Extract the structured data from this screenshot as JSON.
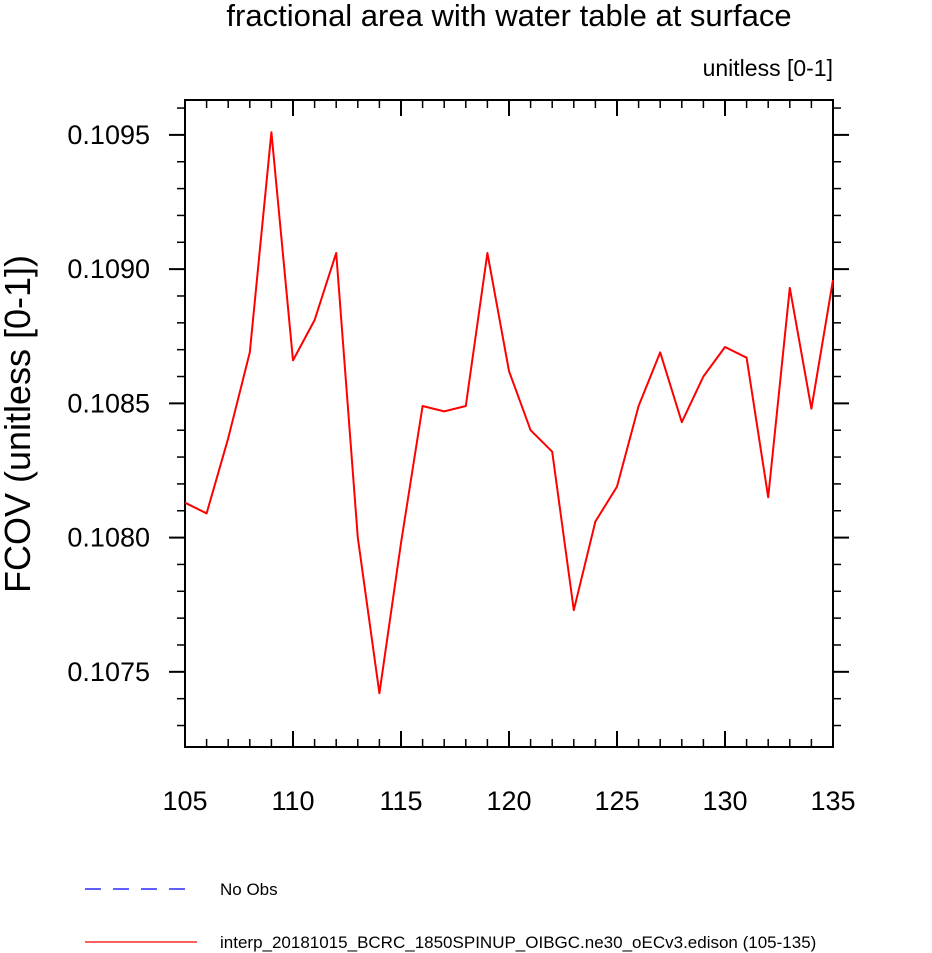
{
  "chart_data": {
    "type": "line",
    "title": "fractional area with water table at surface",
    "units_label": "unitless [0-1]",
    "ylabel": "FCOV  (unitless [0-1])",
    "xlabel": "",
    "xlim": [
      105,
      135
    ],
    "ylim": [
      0.10722,
      0.10963
    ],
    "x_ticks": [
      105,
      110,
      115,
      120,
      125,
      130,
      135
    ],
    "x_tick_labels": [
      "105",
      "110",
      "115",
      "120",
      "125",
      "130",
      "135"
    ],
    "y_ticks": [
      0.1075,
      0.108,
      0.1085,
      0.109,
      0.1095
    ],
    "y_tick_labels": [
      "0.1075",
      "0.1080",
      "0.1085",
      "0.1090",
      "0.1095"
    ],
    "series": [
      {
        "name": "interp_20181015_BCRC_1850SPINUP_OIBGC.ne30_oECv3.edison (105-135)",
        "color": "#ff0000",
        "dash": "solid",
        "x": [
          105,
          106,
          107,
          108,
          109,
          110,
          111,
          112,
          113,
          114,
          115,
          116,
          117,
          118,
          119,
          120,
          121,
          122,
          123,
          124,
          125,
          126,
          127,
          128,
          129,
          130,
          131,
          132,
          133,
          134,
          135
        ],
        "values": [
          0.10813,
          0.10809,
          0.10837,
          0.10869,
          0.10951,
          0.10866,
          0.10881,
          0.10906,
          0.108,
          0.10742,
          0.10798,
          0.10849,
          0.10847,
          0.10849,
          0.10906,
          0.10862,
          0.1084,
          0.10832,
          0.10773,
          0.10806,
          0.10819,
          0.10849,
          0.10869,
          0.10843,
          0.1086,
          0.10871,
          0.10867,
          0.10815,
          0.10893,
          0.10848,
          0.10896
        ]
      }
    ],
    "legend": [
      {
        "label": "No Obs",
        "color": "#0000ff",
        "dash": "dashed"
      },
      {
        "label": "interp_20181015_BCRC_1850SPINUP_OIBGC.ne30_oECv3.edison (105-135)",
        "color": "#ff0000",
        "dash": "solid"
      }
    ],
    "legend_position": "bottom"
  }
}
